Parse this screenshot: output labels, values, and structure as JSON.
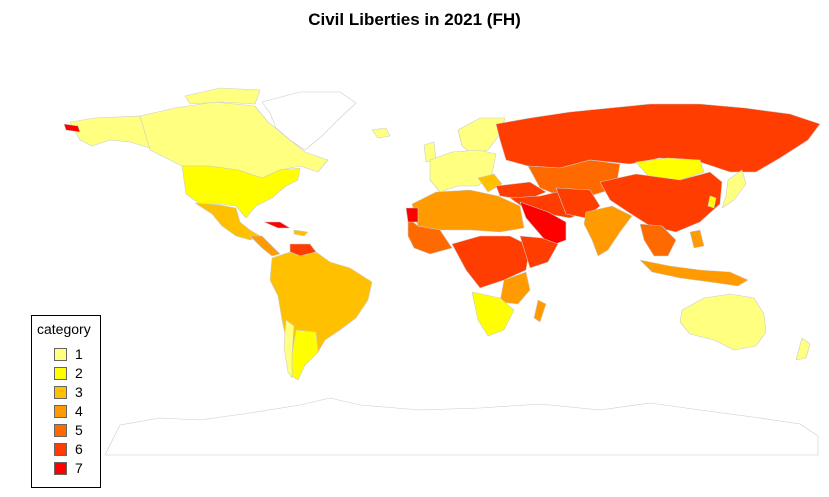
{
  "title": "Civil Liberties in 2021 (FH)",
  "legend": {
    "title": "category",
    "items": [
      {
        "label": "1",
        "color": "#ffff80"
      },
      {
        "label": "2",
        "color": "#ffff00"
      },
      {
        "label": "3",
        "color": "#ffc000"
      },
      {
        "label": "4",
        "color": "#ff9a00"
      },
      {
        "label": "5",
        "color": "#ff6a00"
      },
      {
        "label": "6",
        "color": "#ff3d00"
      },
      {
        "label": "7",
        "color": "#ff0000"
      }
    ]
  },
  "colors": {
    "no_data": "#ffffff",
    "border": "#cccccc"
  }
}
